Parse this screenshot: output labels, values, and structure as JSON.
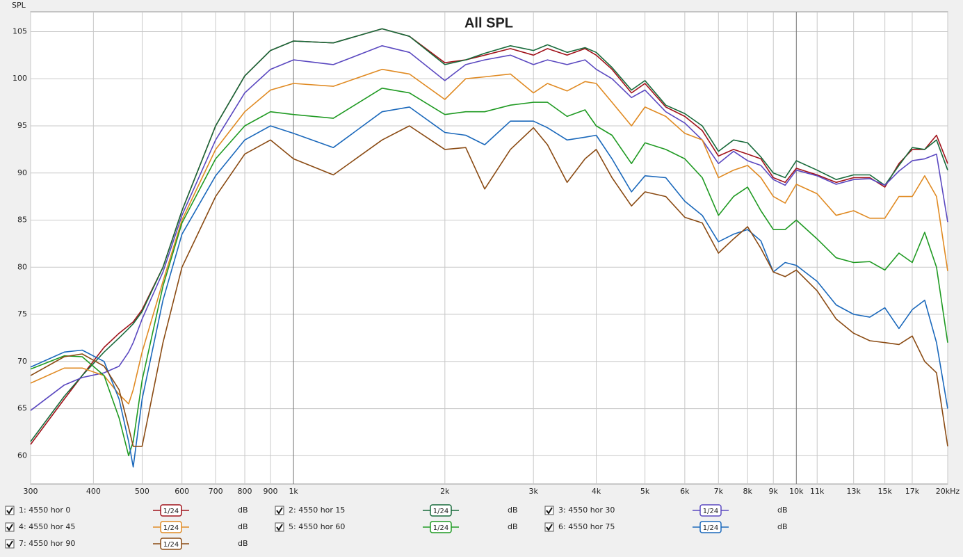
{
  "chart_data": {
    "type": "line",
    "title": "All SPL",
    "y_label": "SPL",
    "x_log": true,
    "grid": true,
    "xlim": [
      300,
      20000
    ],
    "ylim": [
      57,
      107.1
    ],
    "xticks": [
      300,
      400,
      500,
      600,
      700,
      800,
      900,
      {
        "value": 1000,
        "label": "1k"
      },
      {
        "value": 2000,
        "label": "2k"
      },
      {
        "value": 3000,
        "label": "3k"
      },
      {
        "value": 4000,
        "label": "4k"
      },
      {
        "value": 5000,
        "label": "5k"
      },
      {
        "value": 6000,
        "label": "6k"
      },
      {
        "value": 7000,
        "label": "7k"
      },
      {
        "value": 8000,
        "label": "8k"
      },
      {
        "value": 9000,
        "label": "9k"
      },
      {
        "value": 10000,
        "label": "10k"
      },
      {
        "value": 11000,
        "label": "11k"
      },
      {
        "value": 13000,
        "label": "13k"
      },
      {
        "value": 15000,
        "label": "15k"
      },
      {
        "value": 17000,
        "label": "17k"
      },
      {
        "value": 20000,
        "label": "20kHz"
      }
    ],
    "yticks": [
      60,
      65,
      70,
      75,
      80,
      85,
      90,
      95,
      100,
      105
    ],
    "x": [
      300,
      350,
      380,
      420,
      450,
      470,
      480,
      500,
      550,
      600,
      700,
      800,
      900,
      1000,
      1200,
      1500,
      1700,
      2000,
      2200,
      2400,
      2700,
      3000,
      3200,
      3500,
      3800,
      4000,
      4300,
      4700,
      5000,
      5500,
      6000,
      6500,
      7000,
      7500,
      8000,
      8500,
      9000,
      9500,
      10000,
      11000,
      12000,
      13000,
      14000,
      15000,
      16000,
      17000,
      18000,
      19000,
      20000
    ],
    "series": [
      {
        "name": "1: 4550 hor 0",
        "color": "#a0121a",
        "smoothing": "1/24",
        "unit": "dB",
        "values": [
          61.2,
          66,
          68.5,
          71.5,
          73,
          73.8,
          74.2,
          75.5,
          80,
          86,
          95,
          100.3,
          103,
          104,
          103.8,
          105.3,
          104.5,
          101.7,
          102,
          102.5,
          103.2,
          102.5,
          103.2,
          102.5,
          103.2,
          102.5,
          101,
          98.5,
          99.5,
          97,
          96,
          94.5,
          91.8,
          92.5,
          92,
          91.5,
          89.5,
          89,
          90.5,
          89.8,
          89,
          89.5,
          89.5,
          88.5,
          91,
          92.5,
          92.5,
          94,
          91
        ]
      },
      {
        "name": "2: 4550 hor 15",
        "color": "#176a3a",
        "smoothing": "1/24",
        "unit": "dB",
        "values": [
          61.5,
          66.3,
          68.5,
          71,
          72.5,
          73.5,
          74,
          75.3,
          80,
          86,
          95,
          100.3,
          103,
          104,
          103.8,
          105.3,
          104.5,
          101.5,
          102,
          102.7,
          103.5,
          103,
          103.6,
          102.8,
          103.3,
          102.8,
          101.2,
          98.8,
          99.8,
          97.2,
          96.3,
          95,
          92.3,
          93.5,
          93.2,
          91.7,
          90,
          89.5,
          91.3,
          90.3,
          89.3,
          89.8,
          89.8,
          88.7,
          90.8,
          92.7,
          92.5,
          93.5,
          90.3
        ]
      },
      {
        "name": "3: 4550 hor 30",
        "color": "#5a48c0",
        "smoothing": "1/24",
        "unit": "dB",
        "values": [
          64.8,
          67.5,
          68.3,
          68.8,
          69.5,
          71,
          72,
          74.5,
          79.5,
          85.5,
          93.5,
          98.5,
          101,
          102,
          101.5,
          103.5,
          102.8,
          99.8,
          101.5,
          102,
          102.5,
          101.5,
          102,
          101.5,
          102,
          101,
          100,
          98,
          98.8,
          96.5,
          95.3,
          93.5,
          91,
          92.3,
          91.3,
          90.8,
          89.3,
          88.7,
          90.3,
          89.7,
          88.8,
          89.3,
          89.4,
          88.7,
          90.2,
          91.3,
          91.5,
          92,
          84.8
        ]
      },
      {
        "name": "4: 4550 hor 45",
        "color": "#e08a22",
        "smoothing": "1/24",
        "unit": "dB",
        "values": [
          67.7,
          69.3,
          69.3,
          68.5,
          66.5,
          65.5,
          67,
          71,
          78.5,
          85,
          92.5,
          96.5,
          98.8,
          99.5,
          99.2,
          101,
          100.5,
          97.8,
          100,
          100.2,
          100.5,
          98.5,
          99.5,
          98.7,
          99.7,
          99.5,
          97.5,
          95,
          97,
          96,
          94.2,
          93.5,
          89.5,
          90.3,
          90.8,
          89.5,
          87.5,
          86.8,
          88.8,
          87.8,
          85.5,
          86,
          85.2,
          85.2,
          87.5,
          87.5,
          89.7,
          87.5,
          79.6
        ]
      },
      {
        "name": "5: 4550 hor 60",
        "color": "#1f9a22",
        "smoothing": "1/24",
        "unit": "dB",
        "values": [
          69.2,
          70.6,
          70.5,
          68.5,
          64,
          60,
          61.5,
          68,
          78,
          84.7,
          91.5,
          95,
          96.5,
          96.2,
          95.8,
          99,
          98.5,
          96.2,
          96.5,
          96.5,
          97.2,
          97.5,
          97.5,
          96,
          96.7,
          95,
          94,
          91,
          93.2,
          92.5,
          91.5,
          89.5,
          85.5,
          87.5,
          88.5,
          86,
          84,
          84,
          85,
          83,
          81,
          80.5,
          80.6,
          79.7,
          81.5,
          80.5,
          83.7,
          80,
          72
        ]
      },
      {
        "name": "6: 4550 hor 75",
        "color": "#1a68bb",
        "smoothing": "1/24",
        "unit": "dB",
        "values": [
          69.4,
          71,
          71.2,
          70,
          66,
          61.5,
          58.8,
          66,
          76.5,
          83.5,
          89.7,
          93.5,
          95,
          94.2,
          92.7,
          96.5,
          97,
          94.3,
          94,
          93,
          95.5,
          95.5,
          94.8,
          93.5,
          93.8,
          94,
          91.5,
          88,
          89.7,
          89.5,
          87,
          85.5,
          82.7,
          83.5,
          84,
          82.8,
          79.5,
          80.5,
          80.2,
          78.5,
          76,
          75,
          74.7,
          75.7,
          73.5,
          75.5,
          76.5,
          72,
          65
        ]
      },
      {
        "name": "7: 4550 hor 90",
        "color": "#8a4a12",
        "smoothing": "1/24",
        "unit": "dB",
        "values": [
          68.5,
          70.5,
          70.8,
          69.5,
          67,
          63,
          61,
          61,
          72,
          80,
          87.5,
          92,
          93.5,
          91.5,
          89.8,
          93.5,
          95,
          92.5,
          92.7,
          88.3,
          92.5,
          94.8,
          93,
          89,
          91.5,
          92.5,
          89.5,
          86.5,
          88,
          87.5,
          85.3,
          84.7,
          81.5,
          83,
          84.3,
          82,
          79.5,
          79,
          79.7,
          77.5,
          74.5,
          73,
          72.2,
          72,
          71.8,
          72.7,
          70,
          68.8,
          61
        ]
      }
    ]
  }
}
